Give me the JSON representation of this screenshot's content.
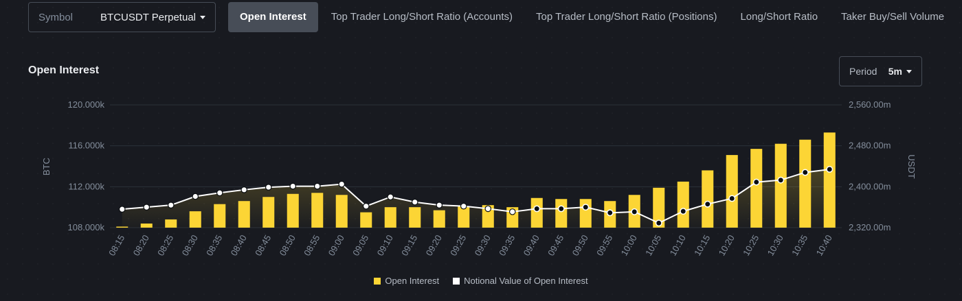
{
  "symbol": {
    "label": "Symbol",
    "value": "BTCUSDT Perpetual"
  },
  "tabs": [
    {
      "label": "Open Interest",
      "active": true
    },
    {
      "label": "Top Trader Long/Short Ratio (Accounts)",
      "active": false
    },
    {
      "label": "Top Trader Long/Short Ratio (Positions)",
      "active": false
    },
    {
      "label": "Long/Short Ratio",
      "active": false
    },
    {
      "label": "Taker Buy/Sell Volume",
      "active": false
    }
  ],
  "section": {
    "title": "Open Interest"
  },
  "period": {
    "label": "Period",
    "value": "5m"
  },
  "colors": {
    "bar": "#fcd535",
    "line": "#ffffff",
    "grid": "#2b3139",
    "axis_text": "#848e9c"
  },
  "chart_data": {
    "type": "bar",
    "xlabel": "",
    "ylabel": "BTC",
    "y2label": "USDT",
    "categories": [
      "08:15",
      "08:20",
      "08:25",
      "08:30",
      "08:35",
      "08:40",
      "08:45",
      "08:50",
      "08:55",
      "09:00",
      "09:05",
      "09:10",
      "09:15",
      "09:20",
      "09:25",
      "09:30",
      "09:35",
      "09:40",
      "09:45",
      "09:50",
      "09:55",
      "10:00",
      "10:05",
      "10:10",
      "10:15",
      "10:20",
      "10:25",
      "10:30",
      "10:35",
      "10:40"
    ],
    "ylim": [
      108000,
      120000
    ],
    "y_ticks": [
      "108.000k",
      "112.000k",
      "116.000k",
      "120.000k"
    ],
    "y2lim": [
      2320,
      2560
    ],
    "y2_ticks": [
      "2,320.00m",
      "2,400.00m",
      "2,480.00m",
      "2,560.00m"
    ],
    "grid": true,
    "legend_position": "bottom",
    "series": [
      {
        "name": "Open Interest",
        "axis": "left",
        "type": "bar",
        "values": [
          108100,
          108400,
          108800,
          109600,
          110300,
          110600,
          111000,
          111300,
          111400,
          111200,
          109500,
          110000,
          110000,
          109700,
          110100,
          110200,
          110000,
          110900,
          110800,
          110800,
          110600,
          111200,
          111900,
          112500,
          113600,
          115100,
          115700,
          116200,
          116600,
          117300
        ]
      },
      {
        "name": "Notional Value of Open Interest",
        "axis": "right",
        "type": "line",
        "values": [
          2356,
          2360,
          2364,
          2381,
          2388,
          2394,
          2399,
          2401,
          2401,
          2405,
          2362,
          2380,
          2370,
          2364,
          2362,
          2357,
          2351,
          2357,
          2357,
          2360,
          2349,
          2351,
          2329,
          2352,
          2366,
          2377,
          2409,
          2413,
          2428,
          2434
        ]
      }
    ]
  }
}
